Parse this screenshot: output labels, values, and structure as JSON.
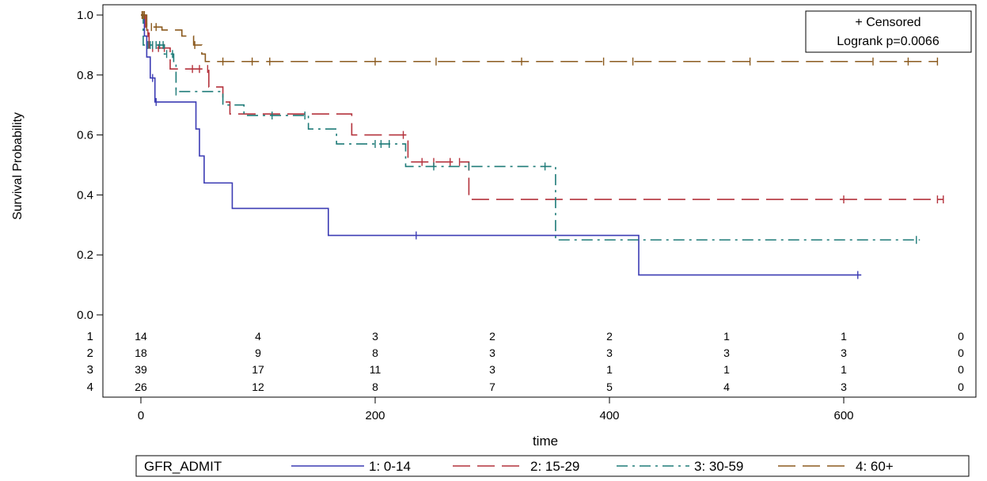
{
  "chart_data": {
    "type": "line",
    "subtype": "kaplan-meier survival step plot",
    "xlabel": "time",
    "ylabel": "Survival Probability",
    "xlim": [
      -30,
      700
    ],
    "ylim": [
      0.0,
      1.0
    ],
    "x_ticks": [
      0,
      200,
      400,
      600
    ],
    "y_ticks": [
      "0.0",
      "0.2",
      "0.4",
      "0.6",
      "0.8",
      "1.0"
    ],
    "inset_box": {
      "censored_label": "+ Censored",
      "logrank_label": "Logrank p=0.0066",
      "placement": "top-right"
    },
    "legend": {
      "title": "GFR_ADMIT",
      "placement": "bottom"
    },
    "series": [
      {
        "name": "1: 0-14",
        "color": "#3c3cb4",
        "dash": "solid",
        "steps": [
          [
            0,
            1.0
          ],
          [
            3,
            0.93
          ],
          [
            5,
            0.86
          ],
          [
            8,
            0.79
          ],
          [
            12,
            0.71
          ],
          [
            47,
            0.62
          ],
          [
            50,
            0.53
          ],
          [
            54,
            0.44
          ],
          [
            78,
            0.355
          ],
          [
            160,
            0.265
          ],
          [
            425,
            0.133
          ],
          [
            615,
            0.133
          ]
        ],
        "censored": [
          10,
          13,
          235,
          612
        ]
      },
      {
        "name": "2: 15-29",
        "color": "#b4323c",
        "dash": "long-dash",
        "steps": [
          [
            0,
            1.0
          ],
          [
            4,
            0.94
          ],
          [
            7,
            0.89
          ],
          [
            25,
            0.82
          ],
          [
            58,
            0.76
          ],
          [
            70,
            0.71
          ],
          [
            76,
            0.67
          ],
          [
            180,
            0.6
          ],
          [
            228,
            0.51
          ],
          [
            280,
            0.385
          ],
          [
            685,
            0.385
          ]
        ],
        "censored": [
          6,
          10,
          15,
          20,
          44,
          50,
          57,
          224,
          240,
          250,
          264,
          272,
          600,
          680,
          685
        ]
      },
      {
        "name": "3: 30-59",
        "color": "#1e7b78",
        "dash": "dash-dot",
        "steps": [
          [
            0,
            1.0
          ],
          [
            2,
            0.9
          ],
          [
            20,
            0.87
          ],
          [
            28,
            0.84
          ],
          [
            30,
            0.745
          ],
          [
            70,
            0.7
          ],
          [
            88,
            0.665
          ],
          [
            143,
            0.62
          ],
          [
            167,
            0.57
          ],
          [
            226,
            0.495
          ],
          [
            354,
            0.25
          ],
          [
            665,
            0.25
          ]
        ],
        "censored": [
          6,
          8,
          10,
          13,
          16,
          19,
          22,
          27,
          30,
          112,
          140,
          200,
          205,
          212,
          250,
          280,
          345,
          662
        ]
      },
      {
        "name": "4: 60+",
        "color": "#8b5a1e",
        "dash": "long-dash",
        "steps": [
          [
            0,
            1.0
          ],
          [
            5,
            0.96
          ],
          [
            18,
            0.95
          ],
          [
            35,
            0.93
          ],
          [
            45,
            0.9
          ],
          [
            52,
            0.87
          ],
          [
            55,
            0.845
          ],
          [
            680,
            0.845
          ]
        ],
        "censored": [
          1,
          2,
          3,
          5,
          9,
          13,
          46,
          70,
          95,
          110,
          200,
          252,
          325,
          395,
          420,
          520,
          625,
          655,
          680
        ]
      }
    ],
    "at_risk": {
      "times": [
        0,
        100,
        200,
        300,
        400,
        500,
        600,
        700
      ],
      "rows": [
        {
          "label": "1",
          "counts": [
            "14",
            "4",
            "3",
            "2",
            "2",
            "1",
            "1",
            "0"
          ]
        },
        {
          "label": "2",
          "counts": [
            "18",
            "9",
            "8",
            "3",
            "3",
            "3",
            "3",
            "0"
          ]
        },
        {
          "label": "3",
          "counts": [
            "39",
            "17",
            "11",
            "3",
            "1",
            "1",
            "1",
            "0"
          ]
        },
        {
          "label": "4",
          "counts": [
            "26",
            "12",
            "8",
            "7",
            "5",
            "4",
            "3",
            "0"
          ]
        }
      ]
    }
  }
}
